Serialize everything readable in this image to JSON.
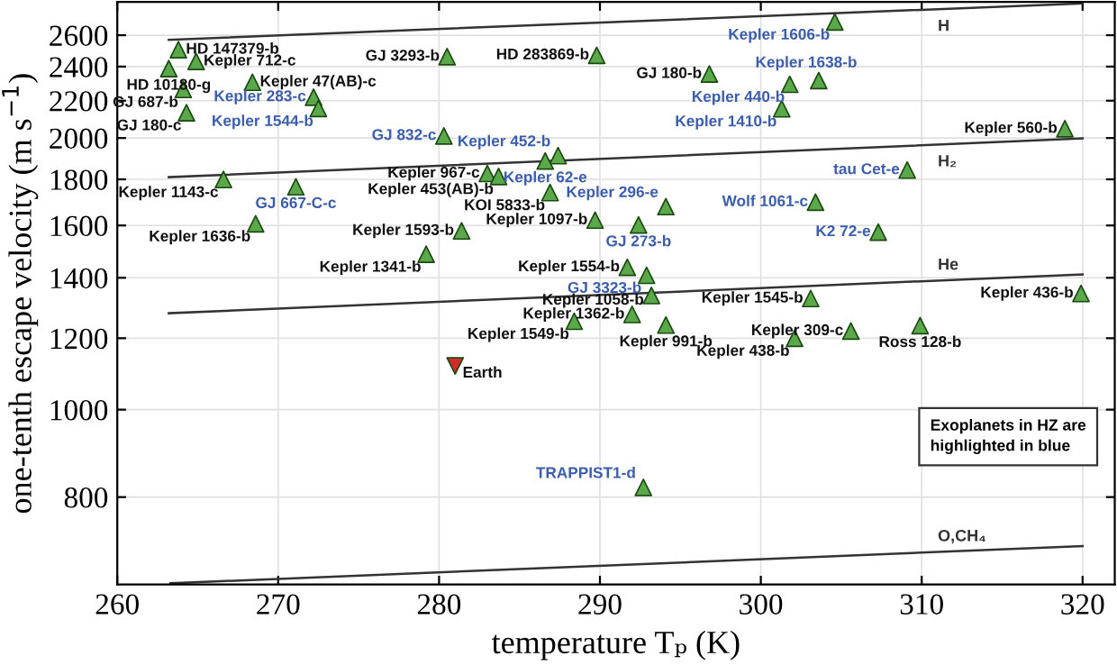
{
  "chart_data": {
    "type": "scatter",
    "xlabel": "temperature Tₚ (K)",
    "ylabel": "one-tenth escape velocity (m s$^{−1}$)",
    "log": "y",
    "xlim": [
      260,
      322
    ],
    "ylim": [
      640,
      2830
    ],
    "xticks": [
      260,
      270,
      280,
      290,
      300,
      310,
      320
    ],
    "yticks": [
      800,
      1000,
      1200,
      1400,
      1600,
      1800,
      2000,
      2200,
      2400,
      2600
    ],
    "grid": true,
    "series": [
      {
        "color": "#5aa84a",
        "marker": "triangle",
        "x": [
          263.8,
          264.9,
          263.2,
          268.4,
          264.1,
          264.3,
          280.5,
          283.0,
          283.7,
          286.9,
          266.6,
          268.6,
          281.4,
          279.2,
          289.8,
          296.8,
          318.9,
          289.7,
          291.7,
          293.2,
          303.1,
          319.9,
          292.0,
          288.4,
          294.1,
          305.6,
          309.9,
          302.1
        ],
        "values": [
          2506,
          2432,
          2388,
          2306,
          2264,
          2133,
          2462,
          1827,
          1813,
          1740,
          1799,
          1607,
          1578,
          1487,
          2470,
          2355,
          2048,
          1622,
          1438,
          1338,
          1328,
          1345,
          1275,
          1253,
          1241,
          1222,
          1239,
          1200
        ]
      },
      {
        "color": "#5aa84a",
        "marker": "triangle",
        "x": [
          272.2,
          272.5,
          280.3,
          287.4,
          286.6,
          271.1,
          304.6,
          303.6,
          301.8,
          301.3,
          309.1,
          294.1,
          303.4,
          292.4,
          307.3,
          292.9,
          292.7
        ],
        "values": [
          2220,
          2157,
          2011,
          1912,
          1886,
          1766,
          2689,
          2316,
          2294,
          2155,
          1843,
          1679,
          1698,
          1602,
          1573,
          1409,
          820
        ]
      },
      {
        "color": "#d42a2a",
        "x": [
          281.0
        ],
        "values": [
          1118
        ]
      },
      {
        "type": "line",
        "name": "H",
        "color": "#333333",
        "x": [
          263.2,
          320
        ],
        "values": [
          2570,
          2820
        ]
      },
      {
        "type": "line",
        "name": "H₂",
        "color": "#333333",
        "x": [
          263.2,
          320
        ],
        "values": [
          1810,
          1998
        ]
      },
      {
        "type": "line",
        "name": "He",
        "color": "#333333",
        "x": [
          263.2,
          320
        ],
        "values": [
          1279,
          1412
        ]
      },
      {
        "type": "line",
        "name": "O,CH₄",
        "color": "#333333",
        "x": [
          263.3,
          320
        ],
        "values": [
          642,
          706
        ]
      }
    ],
    "annotations": [
      {
        "text": "HD 147379-b",
        "x": 263.8,
        "y": 2506
      },
      {
        "text": "Kepler 712-c",
        "x": 264.9,
        "y": 2432
      },
      {
        "text": "HD 10180-g",
        "x": 263.2,
        "y": 2388
      },
      {
        "text": "Kepler 47(AB)-c",
        "x": 268.4,
        "y": 2306
      },
      {
        "text": "GJ 687-b",
        "x": 264.1,
        "y": 2264
      },
      {
        "text": "Kepler 283-c",
        "x": 272.2,
        "y": 2220
      },
      {
        "text": "Kepler 1544-b",
        "x": 272.5,
        "y": 2157
      },
      {
        "text": "GJ 180-c",
        "x": 264.3,
        "y": 2133
      },
      {
        "text": "GJ 3293-b",
        "x": 280.5,
        "y": 2462
      },
      {
        "text": "GJ 832-c",
        "x": 280.3,
        "y": 2011
      },
      {
        "text": "Kepler 452-b",
        "x": 287.4,
        "y": 1912
      },
      {
        "text": "Kepler 62-e",
        "x": 286.6,
        "y": 1886
      },
      {
        "text": "Kepler 967-c",
        "x": 283.0,
        "y": 1827
      },
      {
        "text": "Kepler 453(AB)-b",
        "x": 283.7,
        "y": 1813
      },
      {
        "text": "KOI 5833-b",
        "x": 286.9,
        "y": 1740
      },
      {
        "text": "Kepler 1143-c",
        "x": 266.6,
        "y": 1799
      },
      {
        "text": "GJ 667-C-c",
        "x": 271.1,
        "y": 1766
      },
      {
        "text": "Kepler 1636-b",
        "x": 268.6,
        "y": 1607
      },
      {
        "text": "Kepler 1593-b",
        "x": 281.4,
        "y": 1578
      },
      {
        "text": "Kepler 1341-b",
        "x": 279.2,
        "y": 1487
      },
      {
        "text": "Kepler 1606-b",
        "x": 304.6,
        "y": 2689
      },
      {
        "text": "HD 283869-b",
        "x": 289.8,
        "y": 2470
      },
      {
        "text": "GJ 180-b",
        "x": 296.8,
        "y": 2355
      },
      {
        "text": "Kepler 1638-b",
        "x": 303.6,
        "y": 2316
      },
      {
        "text": "Kepler 440-b",
        "x": 301.8,
        "y": 2294
      },
      {
        "text": "Kepler 1410-b",
        "x": 301.3,
        "y": 2155
      },
      {
        "text": "Kepler 560-b",
        "x": 318.9,
        "y": 2048
      },
      {
        "text": "tau Cet-e",
        "x": 309.1,
        "y": 1843
      },
      {
        "text": "Kepler 296-e",
        "x": 294.1,
        "y": 1679
      },
      {
        "text": "Wolf 1061-c",
        "x": 303.4,
        "y": 1698
      },
      {
        "text": "Kepler 1097-b",
        "x": 289.7,
        "y": 1622
      },
      {
        "text": "GJ 273-b",
        "x": 292.4,
        "y": 1602
      },
      {
        "text": "K2 72-e",
        "x": 307.3,
        "y": 1573
      },
      {
        "text": "Kepler 1554-b",
        "x": 291.7,
        "y": 1438
      },
      {
        "text": "GJ 3323-b",
        "x": 292.9,
        "y": 1409
      },
      {
        "text": "Kepler 1058-b",
        "x": 293.2,
        "y": 1338
      },
      {
        "text": "Kepler 1545-b",
        "x": 303.1,
        "y": 1328
      },
      {
        "text": "Kepler 436-b",
        "x": 319.9,
        "y": 1345
      },
      {
        "text": "Kepler 1362-b",
        "x": 292.0,
        "y": 1275
      },
      {
        "text": "Kepler 1549-b",
        "x": 288.4,
        "y": 1253
      },
      {
        "text": "Kepler 991-b",
        "x": 294.1,
        "y": 1241
      },
      {
        "text": "Kepler 309-c",
        "x": 305.6,
        "y": 1222
      },
      {
        "text": "Ross 128-b",
        "x": 309.9,
        "y": 1239
      },
      {
        "text": "Kepler 438-b",
        "x": 302.1,
        "y": 1200
      },
      {
        "text": "TRAPPIST1-d",
        "x": 292.7,
        "y": 820
      },
      {
        "text": "Earth",
        "x": 281.0,
        "y": 1118
      },
      "Exoplanets in HZ are\nhighlighted in blue"
    ]
  }
}
